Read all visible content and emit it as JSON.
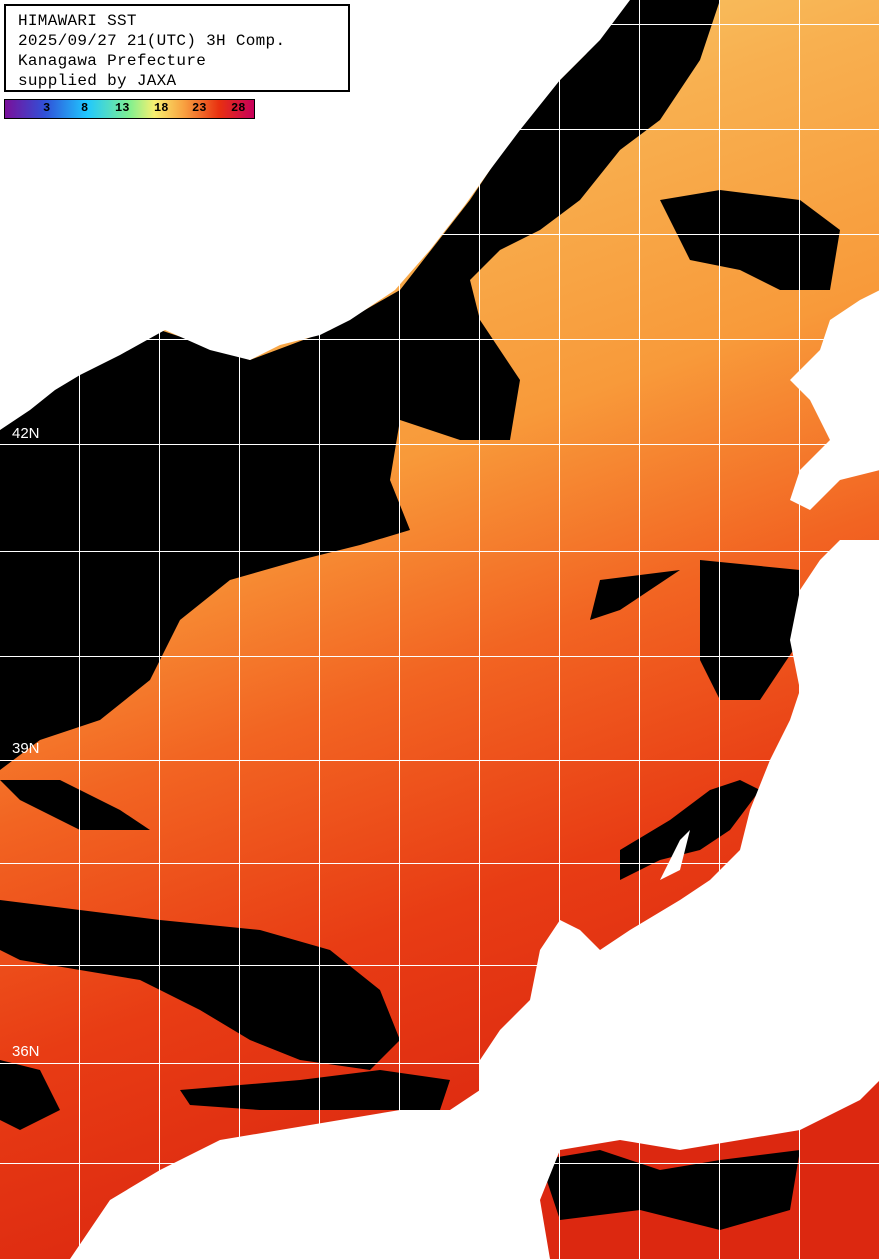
{
  "header": {
    "title": "HIMAWARI SST",
    "datetime": "2025/09/27 21(UTC) 3H Comp.",
    "prefecture": "Kanagawa Prefecture",
    "credit": "supplied by JAXA"
  },
  "colorbar": {
    "ticks": [
      "3",
      "8",
      "13",
      "18",
      "23",
      "28"
    ],
    "colors": [
      "#7a0f9a",
      "#3050d8",
      "#20c8ff",
      "#80f090",
      "#f8f070",
      "#f8a040",
      "#e83010",
      "#c8005a"
    ]
  },
  "latitude_labels": [
    "42N",
    "39N",
    "36N"
  ],
  "colors": {
    "land": "#ffffff",
    "no_data": "#000000",
    "grid": "#ffffff",
    "sst_cool": "#f6d070",
    "sst_mid": "#f8a040",
    "sst_warm": "#e02810"
  }
}
